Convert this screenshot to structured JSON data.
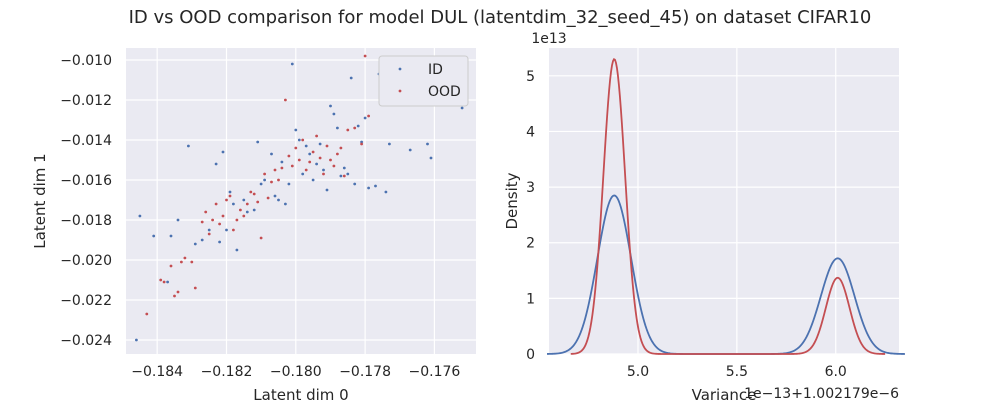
{
  "figure": {
    "title": "ID vs OOD comparison for model DUL (latentdim_32_seed_45) on dataset CIFAR10"
  },
  "colors": {
    "id": "#4c72b0",
    "ood": "#c44e52",
    "panel_bg": "#eaeaf2",
    "grid": "#ffffff"
  },
  "chart_data": [
    {
      "type": "scatter",
      "title": "",
      "xlabel": "Latent dim 0",
      "ylabel": "Latent dim 1",
      "xlim": [
        -0.1849,
        -0.1748
      ],
      "ylim": [
        -0.0247,
        -0.0094
      ],
      "xticks": [
        -0.184,
        -0.182,
        -0.18,
        -0.178,
        -0.176
      ],
      "xtick_labels": [
        "−0.184",
        "−0.182",
        "−0.180",
        "−0.178",
        "−0.176"
      ],
      "yticks": [
        -0.024,
        -0.022,
        -0.02,
        -0.018,
        -0.016,
        -0.014,
        -0.012,
        -0.01
      ],
      "ytick_labels": [
        "−0.024",
        "−0.022",
        "−0.020",
        "−0.018",
        "−0.016",
        "−0.014",
        "−0.012",
        "−0.010"
      ],
      "grid": true,
      "legend": {
        "placement": "top-right",
        "entries": [
          "ID",
          "OOD"
        ]
      },
      "series": [
        {
          "name": "ID",
          "color": "#4c72b0",
          "points": [
            [
              -0.1846,
              -0.024
            ],
            [
              -0.1845,
              -0.0178
            ],
            [
              -0.1841,
              -0.0188
            ],
            [
              -0.1837,
              -0.0211
            ],
            [
              -0.1836,
              -0.0188
            ],
            [
              -0.1834,
              -0.018
            ],
            [
              -0.1831,
              -0.0143
            ],
            [
              -0.1829,
              -0.0192
            ],
            [
              -0.1827,
              -0.019
            ],
            [
              -0.1825,
              -0.0185
            ],
            [
              -0.1823,
              -0.0152
            ],
            [
              -0.1822,
              -0.0191
            ],
            [
              -0.1821,
              -0.0146
            ],
            [
              -0.182,
              -0.0185
            ],
            [
              -0.1819,
              -0.0166
            ],
            [
              -0.1818,
              -0.0172
            ],
            [
              -0.1817,
              -0.0195
            ],
            [
              -0.1815,
              -0.017
            ],
            [
              -0.1814,
              -0.0176
            ],
            [
              -0.1812,
              -0.0175
            ],
            [
              -0.1811,
              -0.0141
            ],
            [
              -0.181,
              -0.0162
            ],
            [
              -0.1809,
              -0.016
            ],
            [
              -0.1807,
              -0.0147
            ],
            [
              -0.1806,
              -0.0168
            ],
            [
              -0.1805,
              -0.017
            ],
            [
              -0.1804,
              -0.0151
            ],
            [
              -0.1803,
              -0.0172
            ],
            [
              -0.1802,
              -0.0162
            ],
            [
              -0.1801,
              -0.0102
            ],
            [
              -0.18,
              -0.0135
            ],
            [
              -0.1799,
              -0.014
            ],
            [
              -0.1798,
              -0.0157
            ],
            [
              -0.1797,
              -0.0143
            ],
            [
              -0.1796,
              -0.0147
            ],
            [
              -0.1795,
              -0.016
            ],
            [
              -0.1794,
              -0.0152
            ],
            [
              -0.1793,
              -0.0142
            ],
            [
              -0.1792,
              -0.0155
            ],
            [
              -0.1791,
              -0.0165
            ],
            [
              -0.179,
              -0.0123
            ],
            [
              -0.1789,
              -0.0127
            ],
            [
              -0.1788,
              -0.0134
            ],
            [
              -0.1787,
              -0.0158
            ],
            [
              -0.1786,
              -0.0154
            ],
            [
              -0.1785,
              -0.0157
            ],
            [
              -0.1784,
              -0.0109
            ],
            [
              -0.1783,
              -0.0162
            ],
            [
              -0.1782,
              -0.0133
            ],
            [
              -0.1781,
              -0.0141
            ],
            [
              -0.178,
              -0.0129
            ],
            [
              -0.1779,
              -0.0164
            ],
            [
              -0.1777,
              -0.0163
            ],
            [
              -0.1776,
              -0.0107
            ],
            [
              -0.1775,
              -0.012
            ],
            [
              -0.1774,
              -0.0166
            ],
            [
              -0.1773,
              -0.0142
            ],
            [
              -0.1772,
              -0.0121
            ],
            [
              -0.1767,
              -0.0145
            ],
            [
              -0.1762,
              -0.0142
            ],
            [
              -0.1761,
              -0.0149
            ],
            [
              -0.1752,
              -0.0124
            ]
          ]
        },
        {
          "name": "OOD",
          "color": "#c44e52",
          "points": [
            [
              -0.1843,
              -0.0227
            ],
            [
              -0.1839,
              -0.021
            ],
            [
              -0.1838,
              -0.0211
            ],
            [
              -0.1836,
              -0.0203
            ],
            [
              -0.1835,
              -0.0218
            ],
            [
              -0.1834,
              -0.0216
            ],
            [
              -0.1833,
              -0.0201
            ],
            [
              -0.1832,
              -0.0199
            ],
            [
              -0.183,
              -0.0201
            ],
            [
              -0.1829,
              -0.0214
            ],
            [
              -0.1827,
              -0.0181
            ],
            [
              -0.1826,
              -0.0176
            ],
            [
              -0.1825,
              -0.0187
            ],
            [
              -0.1824,
              -0.018
            ],
            [
              -0.1823,
              -0.0172
            ],
            [
              -0.1822,
              -0.0182
            ],
            [
              -0.1821,
              -0.0178
            ],
            [
              -0.182,
              -0.017
            ],
            [
              -0.1819,
              -0.0168
            ],
            [
              -0.1818,
              -0.0185
            ],
            [
              -0.1817,
              -0.018
            ],
            [
              -0.1816,
              -0.0175
            ],
            [
              -0.1815,
              -0.0178
            ],
            [
              -0.1814,
              -0.0172
            ],
            [
              -0.1813,
              -0.0166
            ],
            [
              -0.1812,
              -0.0167
            ],
            [
              -0.1811,
              -0.0171
            ],
            [
              -0.181,
              -0.0189
            ],
            [
              -0.1809,
              -0.0157
            ],
            [
              -0.1808,
              -0.0169
            ],
            [
              -0.1807,
              -0.0161
            ],
            [
              -0.1806,
              -0.0155
            ],
            [
              -0.1805,
              -0.016
            ],
            [
              -0.1804,
              -0.0154
            ],
            [
              -0.1803,
              -0.012
            ],
            [
              -0.1802,
              -0.0148
            ],
            [
              -0.1801,
              -0.0153
            ],
            [
              -0.18,
              -0.0144
            ],
            [
              -0.1799,
              -0.015
            ],
            [
              -0.1798,
              -0.014
            ],
            [
              -0.1797,
              -0.0155
            ],
            [
              -0.1796,
              -0.0151
            ],
            [
              -0.1795,
              -0.0146
            ],
            [
              -0.1794,
              -0.0138
            ],
            [
              -0.1793,
              -0.0149
            ],
            [
              -0.1792,
              -0.0157
            ],
            [
              -0.1791,
              -0.0143
            ],
            [
              -0.179,
              -0.015
            ],
            [
              -0.1789,
              -0.0153
            ],
            [
              -0.1788,
              -0.0147
            ],
            [
              -0.1787,
              -0.0144
            ],
            [
              -0.1786,
              -0.0158
            ],
            [
              -0.1785,
              -0.0135
            ],
            [
              -0.1783,
              -0.0134
            ],
            [
              -0.1781,
              -0.0142
            ],
            [
              -0.178,
              -0.0098
            ],
            [
              -0.1779,
              -0.0128
            ]
          ]
        }
      ]
    },
    {
      "type": "line",
      "title": "",
      "xlabel": "Variance",
      "ylabel": "Density",
      "x_offset_label": "1e−13+1.002179e−6",
      "y_offset_label": "1e13",
      "xlim": [
        4.55,
        6.32
      ],
      "ylim": [
        0,
        5.5
      ],
      "xticks": [
        5.0,
        5.5,
        6.0
      ],
      "xtick_labels": [
        "5.0",
        "5.5",
        "6.0"
      ],
      "yticks": [
        0,
        1,
        2,
        3,
        4,
        5
      ],
      "ytick_labels": [
        "0",
        "1",
        "2",
        "3",
        "4",
        "5"
      ],
      "grid": true,
      "series": [
        {
          "name": "ID",
          "color": "#4c72b0",
          "components": [
            {
              "mean": 4.88,
              "sd": 0.085,
              "peak": 2.85
            },
            {
              "mean": 6.01,
              "sd": 0.085,
              "peak": 1.72
            }
          ]
        },
        {
          "name": "OOD",
          "color": "#c44e52",
          "components": [
            {
              "mean": 4.88,
              "sd": 0.055,
              "peak": 5.3
            },
            {
              "mean": 6.01,
              "sd": 0.06,
              "peak": 1.37
            }
          ]
        }
      ]
    }
  ]
}
